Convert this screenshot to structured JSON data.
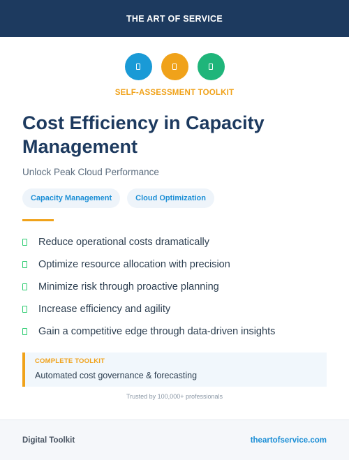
{
  "header": {
    "brand": "THE ART OF SERVICE"
  },
  "icons": [
    {
      "name": "blue-square-icon",
      "color": "#1a9ad6"
    },
    {
      "name": "orange-square-icon",
      "color": "#f0a21a"
    },
    {
      "name": "green-square-icon",
      "color": "#1fb57a"
    }
  ],
  "kicker": "SELF-ASSESSMENT TOOLKIT",
  "title": "Cost Efficiency in Capacity Management",
  "subtitle": "Unlock Peak Cloud Performance",
  "tags": [
    "Capacity Management",
    "Cloud Optimization"
  ],
  "benefits": [
    "Reduce operational costs dramatically",
    "Optimize resource allocation with precision",
    "Minimize risk through proactive planning",
    "Increase efficiency and agility",
    "Gain a competitive edge through data-driven insights"
  ],
  "callout": {
    "label": "COMPLETE TOOLKIT",
    "text": "Automated cost governance & forecasting"
  },
  "trust": "Trusted by 100,000+ professionals",
  "footer": {
    "left": "Digital Toolkit",
    "right": "theartofservice.com"
  },
  "colors": {
    "navy": "#1d3a5f",
    "accent": "#f0a21a",
    "link": "#1d8fd6",
    "check": "#2ecc71"
  }
}
